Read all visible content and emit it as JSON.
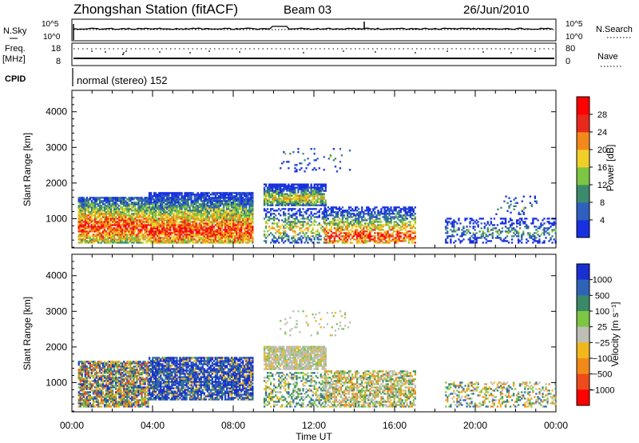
{
  "header": {
    "title": "Zhongshan Station (fitACF)",
    "beam": "Beam 03",
    "date": "26/Jun/2010"
  },
  "status_panels": {
    "nsky": {
      "label": "N.Sky",
      "left_ticks": [
        "10^5",
        "10^0"
      ],
      "right_label": "N.Search",
      "right_ticks": [
        "10^5",
        "10^0"
      ]
    },
    "freq": {
      "label_line1": "Freq.",
      "label_line2": "[MHz]",
      "left_ticks": [
        "18",
        "8"
      ],
      "right_label": "Nave",
      "right_ticks": [
        "80",
        "0"
      ]
    },
    "cpid": {
      "label": "CPID",
      "value": "normal (stereo) 152"
    }
  },
  "x_axis": {
    "tick_labels": [
      "00:00",
      "04:00",
      "08:00",
      "12:00",
      "16:00",
      "20:00",
      "00:00"
    ],
    "label": "Time UT"
  },
  "chart_data": [
    {
      "type": "heatmap",
      "quantity": "power",
      "x_range_hours": [
        0,
        24
      ],
      "ylabel": "Slant Range [km]",
      "ylim": [
        180,
        4600
      ],
      "y_ticks": [
        "1000",
        "2000",
        "3000",
        "4000"
      ],
      "y_tick_values": [
        1000,
        2000,
        3000,
        4000
      ],
      "colorbar": {
        "label": "Power [dB]",
        "tick_labels": [
          "4",
          "8",
          "12",
          "16",
          "20",
          "24",
          "28"
        ],
        "colors": [
          "#1830e0",
          "#2f5fbf",
          "#3c8a6c",
          "#7cc644",
          "#f0d028",
          "#f28a1a",
          "#e8281c",
          "#ff0000"
        ]
      },
      "echo_regions": [
        {
          "t0": 0.3,
          "t1": 3.8,
          "r0": 300,
          "r1": 1600,
          "peak_r": 750,
          "density": 0.85,
          "level": "high"
        },
        {
          "t0": 3.8,
          "t1": 9.0,
          "r0": 300,
          "r1": 1700,
          "peak_r": 650,
          "density": 0.9,
          "level": "high"
        },
        {
          "t0": 9.5,
          "t1": 12.6,
          "r0": 1350,
          "r1": 1950,
          "peak_r": 1550,
          "density": 0.85,
          "level": "mid"
        },
        {
          "t0": 9.5,
          "t1": 12.6,
          "r0": 300,
          "r1": 1250,
          "peak_r": 700,
          "density": 0.45,
          "level": "mid"
        },
        {
          "t0": 12.5,
          "t1": 17.0,
          "r0": 300,
          "r1": 1300,
          "peak_r": 500,
          "density": 0.65,
          "level": "high"
        },
        {
          "t0": 10.3,
          "t1": 13.8,
          "r0": 2300,
          "r1": 3000,
          "peak_r": 2700,
          "density": 0.08,
          "level": "low"
        },
        {
          "t0": 18.5,
          "t1": 24.0,
          "r0": 300,
          "r1": 1000,
          "peak_r": 600,
          "density": 0.35,
          "level": "low"
        },
        {
          "t0": 21.0,
          "t1": 23.0,
          "r0": 1100,
          "r1": 1600,
          "peak_r": 1300,
          "density": 0.1,
          "level": "low"
        }
      ]
    },
    {
      "type": "heatmap",
      "quantity": "velocity",
      "x_range_hours": [
        0,
        24
      ],
      "ylabel": "Slant Range [km]",
      "ylim": [
        180,
        4600
      ],
      "y_ticks": [
        "1000",
        "2000",
        "3000",
        "4000"
      ],
      "y_tick_values": [
        1000,
        2000,
        3000,
        4000
      ],
      "colorbar": {
        "label": "Velocity [m s⁻¹]",
        "tick_labels": [
          "1000",
          "500",
          "100",
          "25",
          "−25",
          "−100",
          "−500",
          "−1000"
        ],
        "colors": [
          "#1a2fd0",
          "#2e63b8",
          "#3a8a68",
          "#7cc644",
          "#bebeb4",
          "#f0b81c",
          "#f28a1a",
          "#ee4a1a",
          "#ff0000"
        ]
      },
      "echo_regions": [
        {
          "t0": 0.3,
          "t1": 3.8,
          "r0": 300,
          "r1": 1600,
          "density": 0.8,
          "dominant": "mixed-orange-green"
        },
        {
          "t0": 3.8,
          "t1": 9.0,
          "r0": 500,
          "r1": 1700,
          "density": 0.85,
          "dominant": "blue"
        },
        {
          "t0": 9.5,
          "t1": 12.6,
          "r0": 1350,
          "r1": 2000,
          "density": 0.85,
          "dominant": "grey"
        },
        {
          "t0": 9.5,
          "t1": 12.6,
          "r0": 300,
          "r1": 1250,
          "density": 0.45,
          "dominant": "green"
        },
        {
          "t0": 12.5,
          "t1": 17.0,
          "r0": 300,
          "r1": 1300,
          "density": 0.65,
          "dominant": "grey-green"
        },
        {
          "t0": 10.3,
          "t1": 13.8,
          "r0": 2300,
          "r1": 3000,
          "density": 0.08,
          "dominant": "grey"
        },
        {
          "t0": 18.5,
          "t1": 24.0,
          "r0": 300,
          "r1": 1000,
          "density": 0.35,
          "dominant": "green-orange"
        }
      ]
    }
  ]
}
